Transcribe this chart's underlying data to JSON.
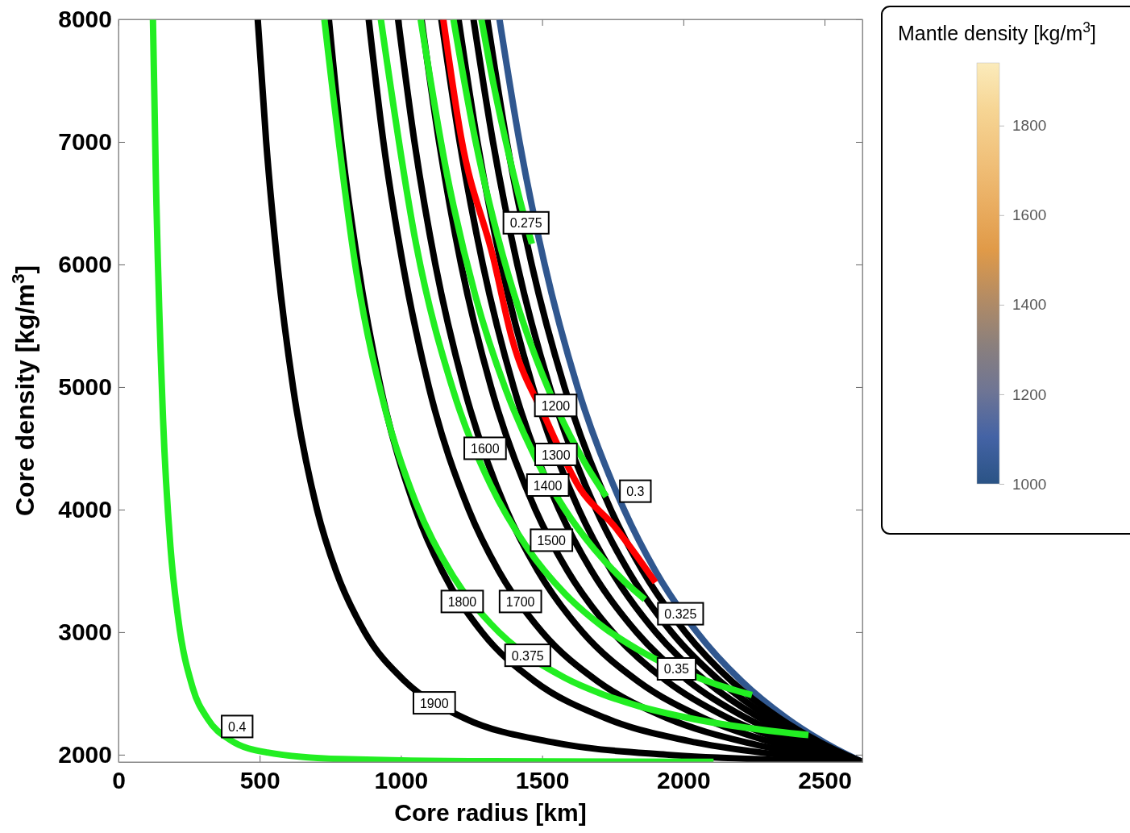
{
  "chart_data": {
    "type": "line",
    "xlabel": "Core radius [km]",
    "ylabel": "Core density [kg/m$^{3}$]",
    "clabel": "Mantle density [kg/m$^{3}$]",
    "line_style": "solid",
    "xlim": [
      0,
      2634
    ],
    "ylim": [
      1940,
      8000
    ],
    "xticks": [
      0,
      500,
      1000,
      1500,
      2000,
      2500
    ],
    "yticks": [
      2000,
      3000,
      4000,
      5000,
      6000,
      7000,
      8000
    ],
    "clim": [
      1000,
      1940
    ],
    "cticks": [
      1000,
      1200,
      1400,
      1600,
      1800
    ],
    "colors": [
      "#2a5385",
      "#4463a5",
      "#6f7594",
      "#8c807c",
      "#b58c63",
      "#e09a48",
      "#eaae62",
      "#f1c27c",
      "#f6d594",
      "#fbebbb"
    ],
    "series": [
      {
        "color": "#30578f",
        "x": [
          1349,
          1420,
          1509,
          1625,
          1790,
          1901,
          2048,
          2206,
          2364,
          2499,
          2580,
          2634
        ],
        "values": [
          8000,
          7000,
          6000,
          5000,
          4000,
          3500,
          3000,
          2600,
          2300,
          2100,
          2000,
          1940
        ]
      },
      {
        "color": "#000000",
        "x": [
          1306,
          1375,
          1463,
          1579,
          1743,
          1856,
          2007,
          2171,
          2339,
          2485,
          2574,
          2634
        ],
        "values": [
          8000,
          7000,
          6000,
          5000,
          4000,
          3500,
          3000,
          2600,
          2300,
          2100,
          2000,
          1940
        ]
      },
      {
        "color": "#000000",
        "x": [
          1257,
          1326,
          1412,
          1527,
          1691,
          1805,
          1958,
          2130,
          2307,
          2468,
          2566,
          2634
        ],
        "values": [
          8000,
          7000,
          6000,
          5000,
          4000,
          3500,
          3000,
          2600,
          2300,
          2100,
          2000,
          1940
        ]
      },
      {
        "color": "#000000",
        "x": [
          1204,
          1271,
          1355,
          1467,
          1630,
          1745,
          1902,
          2080,
          2270,
          2445,
          2557,
          2634
        ],
        "values": [
          8000,
          7000,
          6000,
          5000,
          4000,
          3500,
          3000,
          2600,
          2300,
          2100,
          2000,
          1940
        ]
      },
      {
        "color": "#000000",
        "x": [
          1143,
          1208,
          1290,
          1399,
          1560,
          1675,
          1834,
          2018,
          2222,
          2416,
          2543,
          2634
        ],
        "values": [
          8000,
          7000,
          6000,
          5000,
          4000,
          3500,
          3000,
          2600,
          2300,
          2100,
          2000,
          1940
        ]
      },
      {
        "color": "#000000",
        "x": [
          1073,
          1135,
          1213,
          1319,
          1476,
          1590,
          1750,
          1941,
          2158,
          2375,
          2524,
          2634
        ],
        "values": [
          8000,
          7000,
          6000,
          5000,
          4000,
          3500,
          3000,
          2600,
          2300,
          2100,
          2000,
          1940
        ]
      },
      {
        "color": "#000000",
        "x": [
          990,
          1048,
          1122,
          1223,
          1373,
          1485,
          1643,
          1839,
          2071,
          2317,
          2495,
          2634
        ],
        "values": [
          8000,
          7000,
          6000,
          5000,
          4000,
          3500,
          3000,
          2600,
          2300,
          2100,
          2000,
          1940
        ]
      },
      {
        "color": "#000000",
        "x": [
          886,
          938,
          1007,
          1099,
          1240,
          1346,
          1500,
          1696,
          1941,
          2222,
          2445,
          2634
        ],
        "values": [
          8000,
          7000,
          6000,
          5000,
          4000,
          3500,
          3000,
          2600,
          2300,
          2100,
          2000,
          1940
        ]
      },
      {
        "color": "#000000",
        "x": [
          745,
          789,
          848,
          928,
          1052,
          1146,
          1287,
          1473,
          1723,
          2043,
          2339,
          2519,
          2634
        ],
        "values": [
          8000,
          7000,
          6000,
          5000,
          4000,
          3500,
          3000,
          2600,
          2300,
          2100,
          2000,
          1960,
          1940
        ]
      },
      {
        "color": "#000000",
        "x": [
          493,
          523,
          563,
          618,
          703,
          770,
          872,
          1014,
          1223,
          1540,
          1941,
          2301,
          2533,
          2634
        ],
        "values": [
          8000,
          7000,
          6000,
          5000,
          4000,
          3500,
          3000,
          2600,
          2300,
          2100,
          2000,
          1960,
          1945,
          1940
        ]
      },
      {
        "color": "#22ee22",
        "x": [
          1285,
          1317,
          1370,
          1422,
          1464
        ],
        "values": [
          8000,
          7599,
          7018,
          6519,
          6168
        ]
      },
      {
        "color": "#22ee22",
        "x": [
          1186,
          1264,
          1343,
          1422,
          1501,
          1580,
          1659,
          1727
        ],
        "values": [
          8000,
          7008,
          6226,
          5603,
          5101,
          4690,
          4352,
          4107
        ]
      },
      {
        "color": "#22ee22",
        "x": [
          1070,
          1159,
          1264,
          1370,
          1475,
          1580,
          1686,
          1791,
          1864
        ],
        "values": [
          8000,
          6785,
          5741,
          4987,
          4428,
          4003,
          3674,
          3415,
          3267
        ]
      },
      {
        "color": "#22ee22",
        "x": [
          929,
          1054,
          1185,
          1317,
          1449,
          1580,
          1712,
          1844,
          2107,
          2243
        ],
        "values": [
          8000,
          6162,
          4973,
          4204,
          3682,
          3315,
          3049,
          2851,
          2582,
          2487
        ]
      },
      {
        "color": "#22ee22",
        "x": [
          729,
          843,
          948,
          1054,
          1185,
          1317,
          1580,
          1712,
          1844,
          1976,
          2107,
          2239,
          2443
        ],
        "values": [
          8000,
          5927,
          4787,
          4051,
          3456,
          3071,
          2628,
          2495,
          2395,
          2320,
          2261,
          2215,
          2160
        ]
      },
      {
        "color": "#22ee22",
        "x": [
          122,
          132,
          158,
          184,
          211,
          263,
          316,
          395,
          527,
          790,
          1317,
          2107
        ],
        "values": [
          8000,
          6752,
          4727,
          3697,
          3118,
          2545,
          2292,
          2121,
          2018,
          1964,
          1946,
          1942
        ]
      },
      {
        "color": "#ff0000",
        "x": [
          1150,
          1213,
          1327,
          1393,
          1513,
          1635,
          1755,
          1901
        ],
        "values": [
          8000,
          7040,
          6055,
          5398,
          4740,
          4169,
          3866,
          3406
        ]
      }
    ],
    "annotations": [
      {
        "text": "0.275",
        "x": 1443,
        "y": 6340
      },
      {
        "text": "0.3",
        "x": 1830,
        "y": 4150
      },
      {
        "text": "0.325",
        "x": 1990,
        "y": 3150
      },
      {
        "text": "0.35",
        "x": 1976,
        "y": 2700
      },
      {
        "text": "0.375",
        "x": 1449,
        "y": 2811
      },
      {
        "text": "0.4",
        "x": 420,
        "y": 2230
      },
      {
        "text": "1900",
        "x": 1118,
        "y": 2423
      },
      {
        "text": "1800",
        "x": 1217,
        "y": 3250
      },
      {
        "text": "1700",
        "x": 1423,
        "y": 3250
      },
      {
        "text": "1600",
        "x": 1298,
        "y": 4500
      },
      {
        "text": "1500",
        "x": 1533,
        "y": 3750
      },
      {
        "text": "1400",
        "x": 1520,
        "y": 4200
      },
      {
        "text": "1300",
        "x": 1549,
        "y": 4450
      },
      {
        "text": "1200",
        "x": 1548,
        "y": 4850
      }
    ]
  }
}
